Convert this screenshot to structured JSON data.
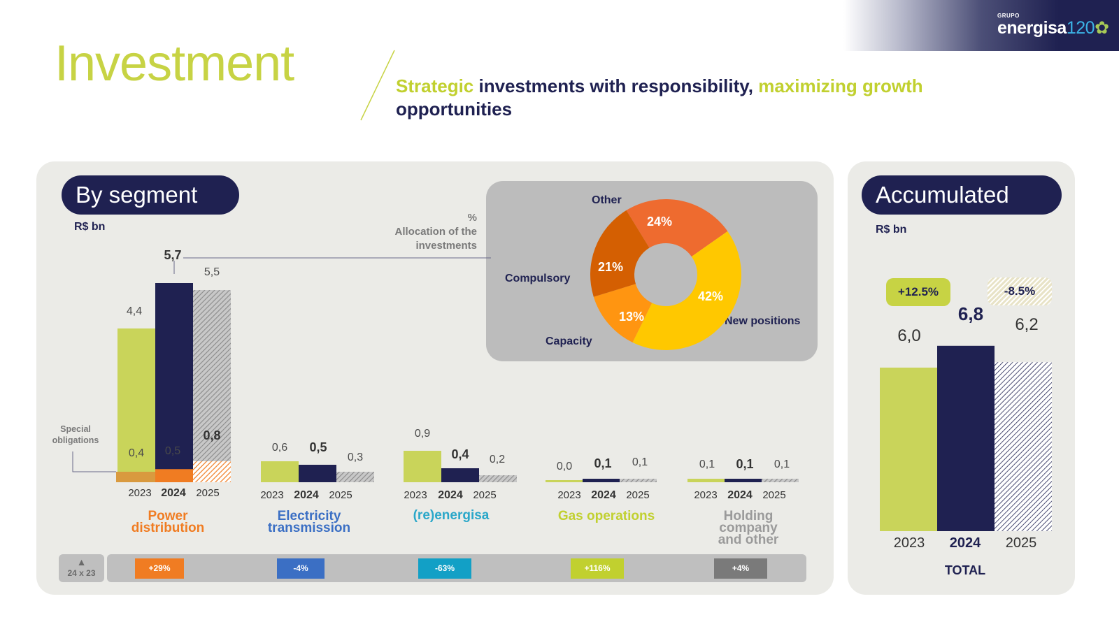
{
  "logo": {
    "group": "GRUPO",
    "name": "energisa",
    "num": "120"
  },
  "title": "Investment",
  "subtitle": {
    "part1": "Strategic",
    "part2": " investments with responsibility, ",
    "part3": "maximizing growth",
    "part4": "opportunities"
  },
  "colors": {
    "y2023": "#c9d45a",
    "y2024": "#1f2151",
    "y2025": "#9a9a9a",
    "orange": "#f07c22",
    "accent_lime": "#c7d344"
  },
  "segment": {
    "pill": "By segment",
    "unit": "R$ bn",
    "alloc_label_pct": "%",
    "alloc_label": "Allocation of the investments",
    "special_obligations": "Special obligations",
    "years": [
      "2023",
      "2024",
      "2025"
    ],
    "groups": [
      {
        "name": "Power distribution",
        "color": "#f07c22",
        "values": [
          "4,4",
          "5,7",
          "5,5"
        ],
        "special": [
          "0,4",
          "0,5",
          "0,8"
        ],
        "badge": "+29%"
      },
      {
        "name": "Electricity transmission",
        "color": "#3b6fc4",
        "values": [
          "0,6",
          "0,5",
          "0,3"
        ],
        "badge": "-4%"
      },
      {
        "name": "(re)energisa",
        "color": "#2aa7c9",
        "values": [
          "0,9",
          "0,4",
          "0,2"
        ],
        "badge": "-63%"
      },
      {
        "name": "Gas operations",
        "color": "#c1d02f",
        "values": [
          "0,0",
          "0,1",
          "0,1"
        ],
        "badge": "+116%"
      },
      {
        "name": "Holding company and other",
        "color": "#9a9a9a",
        "values": [
          "0,1",
          "0,1",
          "0,1"
        ],
        "badge": "+4%"
      }
    ],
    "strip_tag": "24 x 23"
  },
  "donut": {
    "slices": [
      {
        "label": "Other",
        "pct": "24%",
        "value": 24,
        "color": "#ee6b2f"
      },
      {
        "label": "New positions",
        "pct": "42%",
        "value": 42,
        "color": "#ffc800"
      },
      {
        "label": "Capacity",
        "pct": "13%",
        "value": 13,
        "color": "#ff9511"
      },
      {
        "label": "Compulsory",
        "pct": "21%",
        "value": 21,
        "color": "#d45f02"
      }
    ]
  },
  "accumulated": {
    "pill": "Accumulated",
    "unit": "R$ bn",
    "badge_up": "+12.5%",
    "badge_down": "-8.5%",
    "values": [
      "6,0",
      "6,8",
      "6,2"
    ],
    "years": [
      "2023",
      "2024",
      "2025"
    ],
    "total": "TOTAL"
  },
  "chart_data": [
    {
      "type": "bar",
      "title": "By segment",
      "ylabel": "R$ bn",
      "categories": [
        "Power distribution",
        "Electricity transmission",
        "(re)energisa",
        "Gas operations",
        "Holding company and other"
      ],
      "series": [
        {
          "name": "2023",
          "values": [
            4.4,
            0.6,
            0.9,
            0.0,
            0.1
          ]
        },
        {
          "name": "2024",
          "values": [
            5.7,
            0.5,
            0.4,
            0.1,
            0.1
          ]
        },
        {
          "name": "2025",
          "values": [
            5.5,
            0.3,
            0.2,
            0.1,
            0.1
          ]
        }
      ],
      "annotations": {
        "Special obligations (Power distribution)": {
          "2023": 0.4,
          "2024": 0.5,
          "2025": 0.8
        },
        "24 x 23": [
          "+29%",
          "-4%",
          "-63%",
          "+116%",
          "+4%"
        ]
      }
    },
    {
      "type": "pie",
      "title": "% Allocation of the investments",
      "categories": [
        "Other",
        "New positions",
        "Capacity",
        "Compulsory"
      ],
      "values": [
        24,
        42,
        13,
        21
      ]
    },
    {
      "type": "bar",
      "title": "Accumulated",
      "ylabel": "R$ bn",
      "xlabel": "TOTAL",
      "categories": [
        "2023",
        "2024",
        "2025"
      ],
      "values": [
        6.0,
        6.8,
        6.2
      ],
      "annotations": {
        "2024 vs 2023": "+12.5%",
        "2025 vs 2024": "-8.5%"
      }
    }
  ]
}
